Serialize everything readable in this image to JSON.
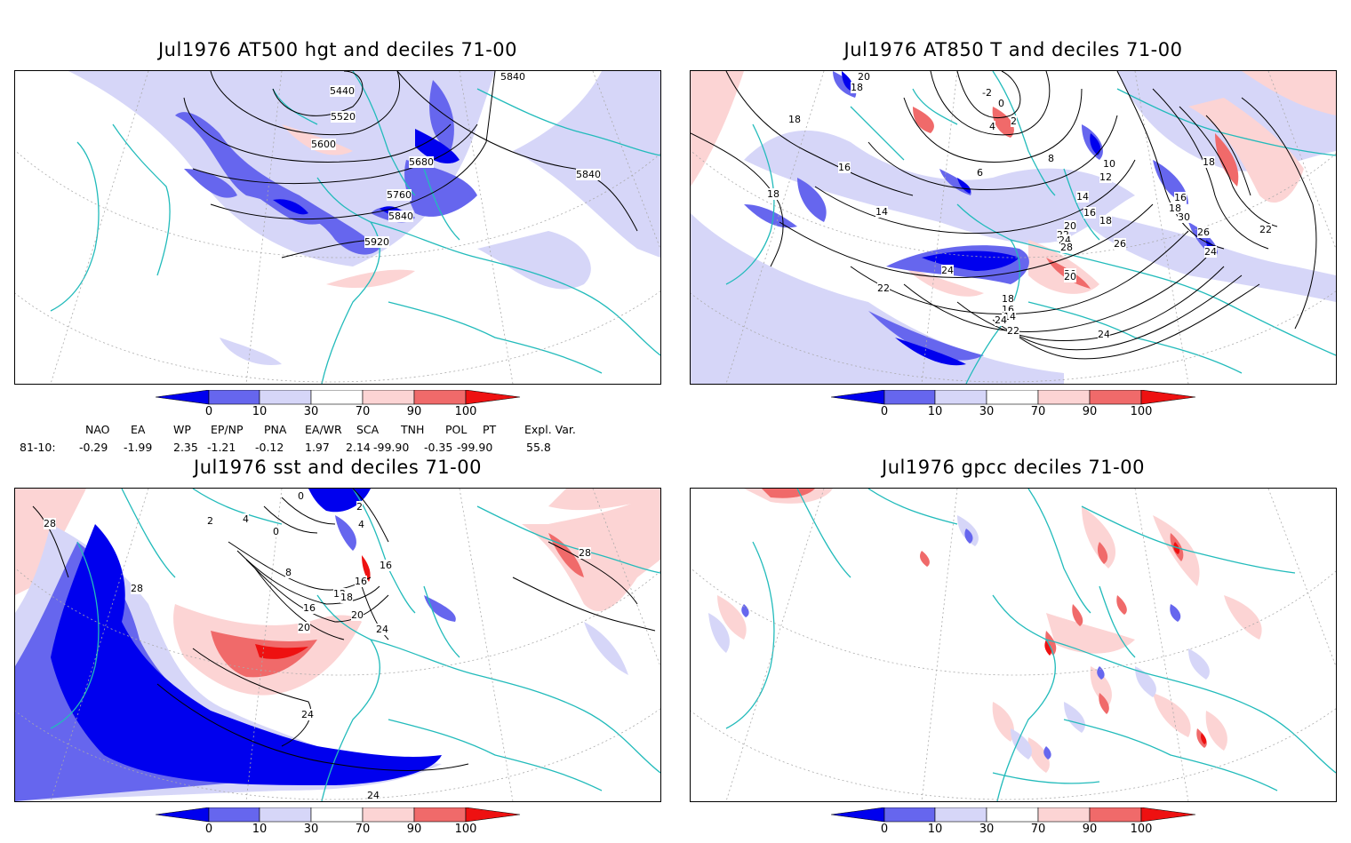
{
  "panels": [
    {
      "title": "Jul1976 AT500 hgt and deciles 71-00",
      "contour_labels": [
        "5440",
        "5520",
        "5600",
        "5680",
        "5760",
        "5840",
        "5920",
        "5840",
        "5840"
      ]
    },
    {
      "title": "Jul1976 AT850 T and deciles 71-00",
      "contour_labels": [
        "20",
        "18",
        "18",
        "16",
        "18",
        "14",
        "-2",
        "0",
        "2",
        "4",
        "6",
        "8",
        "10",
        "12",
        "14",
        "16",
        "18",
        "20",
        "22",
        "24",
        "28",
        "30",
        "26",
        "24",
        "22",
        "18",
        "16",
        "18",
        "30",
        "26",
        "24",
        "22",
        "20",
        "18",
        "16",
        "14",
        "24",
        "22",
        "24"
      ]
    },
    {
      "title": "Jul1976 sst and deciles 71-00",
      "contour_labels": [
        "28",
        "28",
        "0",
        "2",
        "4",
        "0",
        "2",
        "4",
        "8",
        "12",
        "16",
        "16",
        "18",
        "20",
        "20",
        "24",
        "24",
        "24",
        "28",
        "16"
      ]
    },
    {
      "title": "Jul1976 gpcc deciles 71-00",
      "contour_labels": []
    }
  ],
  "colorbar": {
    "ticks": [
      "0",
      "10",
      "30",
      "70",
      "90",
      "100"
    ],
    "colors": [
      "#0000ee",
      "#6666ee",
      "#d6d6f8",
      "#ffffff",
      "#fcd4d4",
      "#f06a6a",
      "#ee1111"
    ]
  },
  "indices": {
    "headers": [
      "NAO",
      "EA",
      "WP",
      "EP/NP",
      "PNA",
      "EA/WR",
      "SCA",
      "TNH",
      "POL",
      "PT",
      "Expl. Var."
    ],
    "row_label": "81-10:",
    "values": [
      "-0.29",
      "-1.99",
      "2.35",
      "-1.21",
      "-0.12",
      "1.97",
      "2.14",
      "-99.90",
      "-0.35",
      "-99.90",
      "55.8"
    ]
  },
  "style": {
    "coast": "#22bbbb",
    "grid": "#aaaaaa",
    "contour": "#000000"
  }
}
